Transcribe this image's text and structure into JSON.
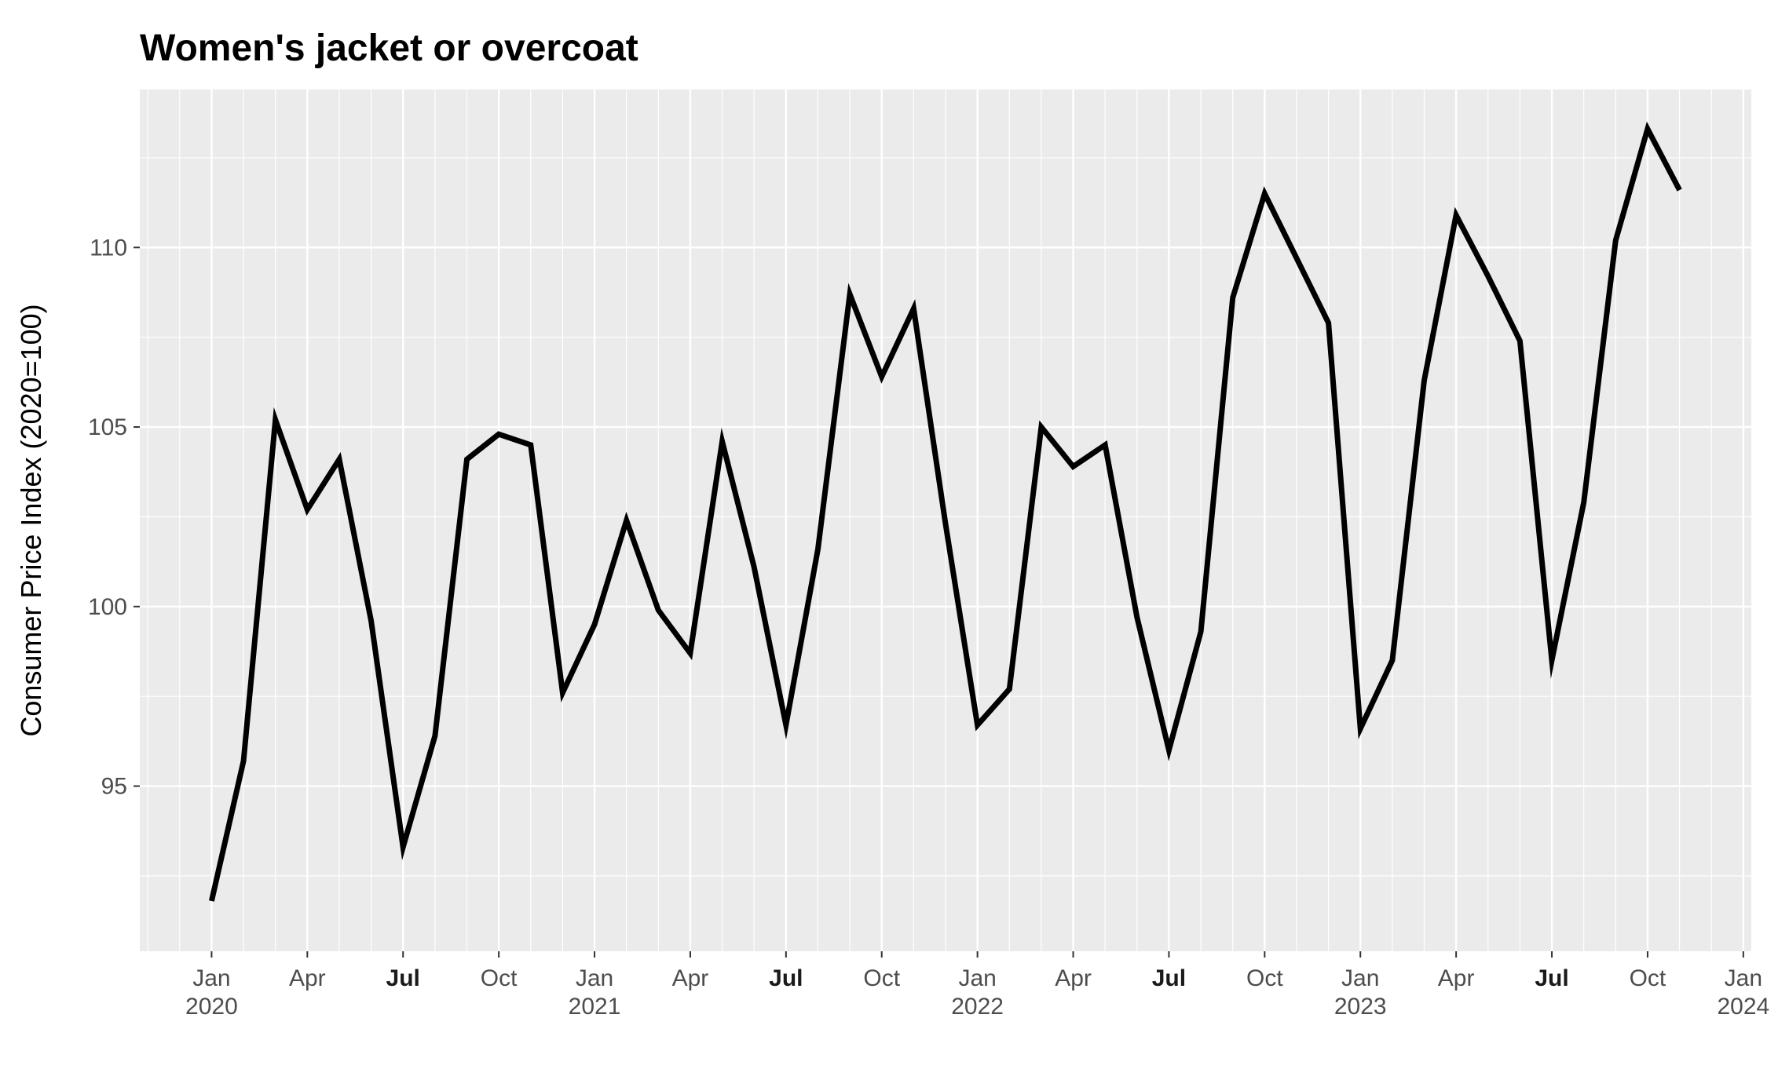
{
  "chart_data": {
    "type": "line",
    "title": "Women's jacket or overcoat",
    "xlabel": "",
    "ylabel": "Consumer Price Index (2020=100)",
    "x_start": "2020-01",
    "x": [
      "2020-01",
      "2020-02",
      "2020-03",
      "2020-04",
      "2020-05",
      "2020-06",
      "2020-07",
      "2020-08",
      "2020-09",
      "2020-10",
      "2020-11",
      "2020-12",
      "2021-01",
      "2021-02",
      "2021-03",
      "2021-04",
      "2021-05",
      "2021-06",
      "2021-07",
      "2021-08",
      "2021-09",
      "2021-10",
      "2021-11",
      "2021-12",
      "2022-01",
      "2022-02",
      "2022-03",
      "2022-04",
      "2022-05",
      "2022-06",
      "2022-07",
      "2022-08",
      "2022-09",
      "2022-10",
      "2022-11",
      "2022-12",
      "2023-01",
      "2023-02",
      "2023-03",
      "2023-04",
      "2023-05",
      "2023-06",
      "2023-07",
      "2023-08",
      "2023-09",
      "2023-10",
      "2023-11"
    ],
    "series": [
      {
        "values": [
          91.8,
          95.7,
          105.2,
          102.7,
          104.1,
          99.6,
          93.3,
          96.4,
          104.1,
          104.8,
          104.5,
          97.6,
          99.5,
          102.4,
          99.9,
          98.7,
          104.6,
          101.1,
          96.7,
          101.6,
          108.7,
          106.4,
          108.3,
          102.3,
          96.7,
          97.7,
          105.0,
          103.9,
          104.5,
          99.7,
          96.0,
          99.3,
          108.6,
          111.5,
          109.7,
          107.9,
          96.6,
          98.5,
          106.3,
          110.9,
          109.2,
          107.4,
          98.5,
          102.9,
          110.2,
          113.3,
          111.6
        ],
        "color": "#000000"
      }
    ],
    "ylim": [
      90.4,
      114.4
    ],
    "y_ticks": [
      "95",
      "100",
      "105",
      "110"
    ],
    "x_ticks": [
      {
        "month": "Jan",
        "year": "2020",
        "date": "2020-01",
        "bold": false
      },
      {
        "month": "Apr",
        "year": "",
        "date": "2020-04",
        "bold": false
      },
      {
        "month": "Jul",
        "year": "",
        "date": "2020-07",
        "bold": true
      },
      {
        "month": "Oct",
        "year": "",
        "date": "2020-10",
        "bold": false
      },
      {
        "month": "Jan",
        "year": "2021",
        "date": "2021-01",
        "bold": false
      },
      {
        "month": "Apr",
        "year": "",
        "date": "2021-04",
        "bold": false
      },
      {
        "month": "Jul",
        "year": "",
        "date": "2021-07",
        "bold": true
      },
      {
        "month": "Oct",
        "year": "",
        "date": "2021-10",
        "bold": false
      },
      {
        "month": "Jan",
        "year": "2022",
        "date": "2022-01",
        "bold": false
      },
      {
        "month": "Apr",
        "year": "",
        "date": "2022-04",
        "bold": false
      },
      {
        "month": "Jul",
        "year": "",
        "date": "2022-07",
        "bold": true
      },
      {
        "month": "Oct",
        "year": "",
        "date": "2022-10",
        "bold": false
      },
      {
        "month": "Jan",
        "year": "2023",
        "date": "2023-01",
        "bold": false
      },
      {
        "month": "Apr",
        "year": "",
        "date": "2023-04",
        "bold": false
      },
      {
        "month": "Jul",
        "year": "",
        "date": "2023-07",
        "bold": true
      },
      {
        "month": "Oct",
        "year": "",
        "date": "2023-10",
        "bold": false
      },
      {
        "month": "Jan",
        "year": "2024",
        "date": "2024-01",
        "bold": false
      }
    ],
    "grid": true,
    "panel_color": "#ebebeb",
    "grid_color": "#ffffff",
    "legend": "none"
  }
}
